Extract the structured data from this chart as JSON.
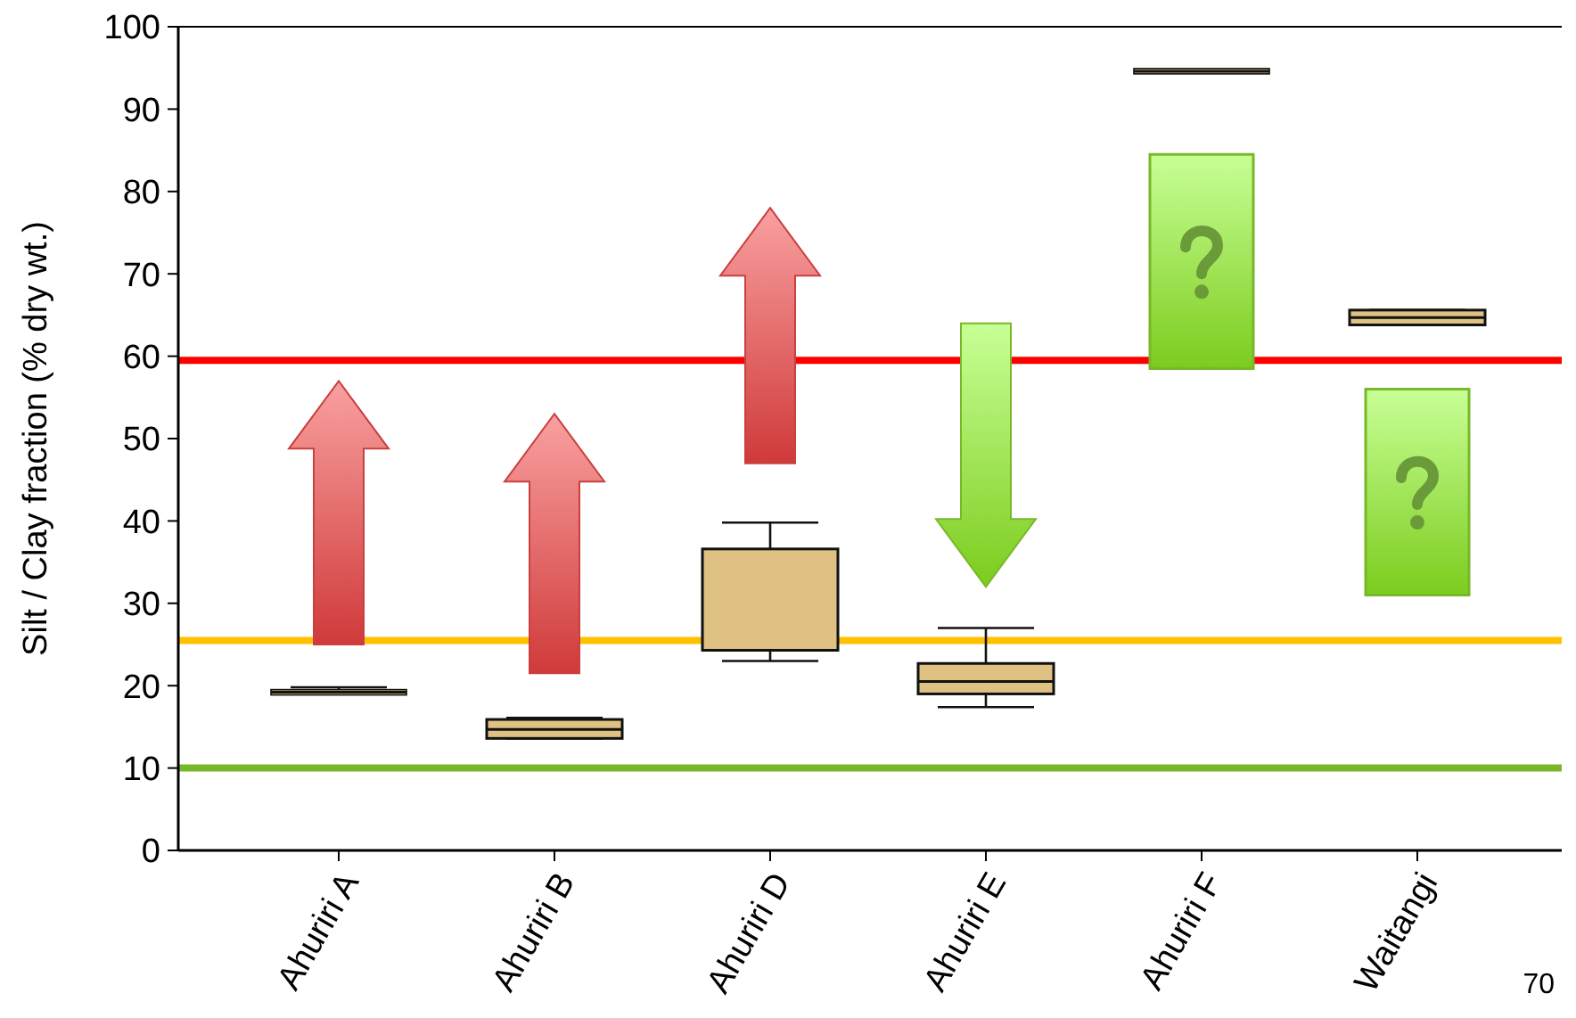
{
  "chart_data": {
    "type": "box",
    "ylabel": "Silt / Clay fraction (% dry wt.)",
    "categories": [
      "Ahuriri A",
      "Ahuriri B",
      "Ahuriri D",
      "Ahuriri E",
      "Ahuriri F",
      "Waitangi"
    ],
    "boxes": [
      {
        "low": 19.2,
        "q1": 19.2,
        "median": 19.2,
        "q3": 19.2,
        "high": 19.8
      },
      {
        "low": 13.6,
        "q1": 13.6,
        "median": 14.7,
        "q3": 15.9,
        "high": 16.1
      },
      {
        "low": 23.0,
        "q1": 24.3,
        "median": 24.3,
        "q3": 36.6,
        "high": 39.8
      },
      {
        "low": 17.4,
        "q1": 19.0,
        "median": 20.5,
        "q3": 22.7,
        "high": 27.0
      },
      {
        "low": 94.6,
        "q1": 94.6,
        "median": 94.6,
        "q3": 94.6,
        "high": 94.6
      },
      {
        "low": 63.8,
        "q1": 63.8,
        "median": 64.7,
        "q3": 65.6,
        "high": 65.6
      }
    ],
    "color": "#dfc283",
    "ylim": [
      0,
      100
    ],
    "yticks": [
      0,
      10,
      20,
      30,
      40,
      50,
      60,
      70,
      80,
      90,
      100
    ],
    "ref_lines": [
      {
        "axis": "y",
        "value": 59.5,
        "color": "#ff0000"
      },
      {
        "axis": "y",
        "value": 25.5,
        "color": "#ffc000"
      },
      {
        "axis": "y",
        "value": 10,
        "color": "#77b82a"
      }
    ],
    "annotations": [
      "70"
    ]
  }
}
